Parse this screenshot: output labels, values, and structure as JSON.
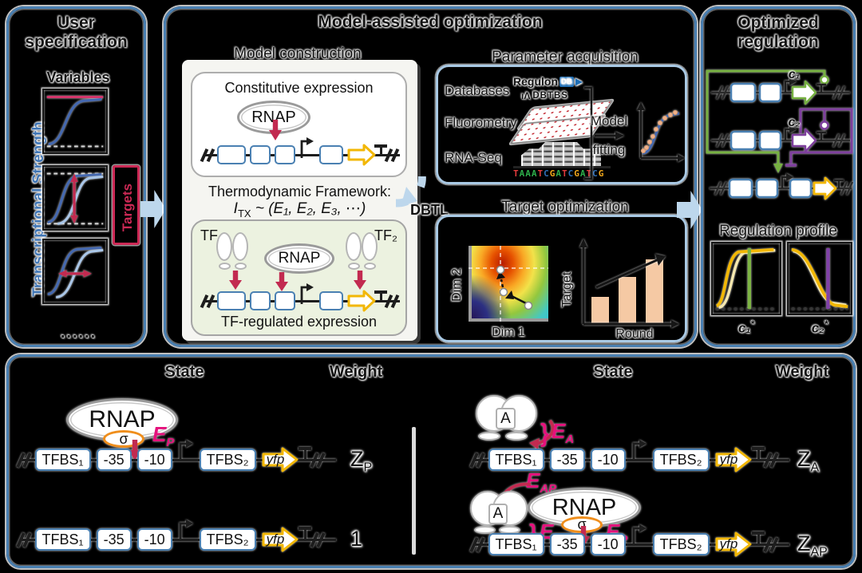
{
  "user_spec": {
    "title_line1": "User",
    "title_line2": "specification",
    "variables_label": "Variables",
    "y_axis_label": "Transcriptional Strength",
    "targets_label": "Targets",
    "ellipsis": "......"
  },
  "middle": {
    "title": "Model-assisted optimization",
    "model_construction": {
      "label": "Model construction",
      "constitutive_title": "Constitutive expression",
      "rnap_label": "RNAP",
      "framework_title": "Thermodynamic Framework:",
      "formula_base": "I",
      "formula_sub": "TX",
      "formula_rest": " ~ (E₁, E₂, E₃, ⋯)",
      "tf1_label": "TF₁",
      "tf2_label": "TF₂",
      "tf_rnap_label": "RNAP",
      "tf_caption": "TF-regulated expression"
    },
    "dbtl_label": "DBTL",
    "parameter_acquisition": {
      "label": "Parameter acquisition",
      "source1": "Databases",
      "source2": "Fluorometry",
      "source3": "RNA-Seq",
      "regulon_label": "Regulon",
      "regulon_db": "DB",
      "regulon_arrow": "▶",
      "dbtbs_glyph": "ıΛ",
      "dbtbs_label": "DBTBS",
      "fitting_line1": "Model",
      "fitting_line2": "fitting",
      "sequence": "TAAATCGATCGATCG"
    },
    "target_optimization": {
      "label": "Target optimization",
      "xlabel": "Dim 1",
      "ylabel": "Dim 2",
      "bar_ylabel": "Target",
      "bar_xlabel": "Round",
      "bar_values": [
        0.38,
        0.66,
        0.9
      ]
    }
  },
  "optimized": {
    "title_line1": "Optimized",
    "title_line2": "regulation",
    "c1_label": "c₁",
    "c2_label": "c₂",
    "profile_label": "Regulation profile",
    "profile1_xlabel_base": "c₁",
    "profile1_xlabel_sup": "*",
    "profile2_xlabel_base": "c₂",
    "profile2_xlabel_sup": "*"
  },
  "states": {
    "left": {
      "state_header": "State",
      "weight_header": "Weight",
      "rnap_label": "RNAP",
      "sigma_label": "σ",
      "ep_base": "E",
      "ep_sub": "P",
      "zp_base": "Z",
      "zp_sub": "P",
      "weight_one": "1"
    },
    "right": {
      "state_header": "State",
      "weight_header": "Weight",
      "activator_label": "A",
      "rnap_label": "RNAP",
      "sigma_label": "σ",
      "brace": "}",
      "ea_base": "E",
      "ea_sub": "A",
      "eap_base": "E",
      "eap_sub": "AP",
      "ep_base": "E",
      "ep_sub": "P",
      "za_base": "Z",
      "za_sub": "A",
      "zap_base": "Z",
      "zap_sub": "AP"
    },
    "dna": {
      "tfbs1": "TFBS₁",
      "minus35": "-35",
      "minus10": "-10",
      "tfbs2": "TFBS₂",
      "gene": "yfp"
    }
  },
  "colors": {
    "panel_border": "#4a80b2",
    "connector_blue": "#bdd7ec",
    "crimson": "#c22a50",
    "pink": "#e5117c",
    "gene_yellow": "#f2b705",
    "circuit_green": "#76b041",
    "circuit_purple": "#7e3f9d",
    "sigma_orange": "#ef8e1c",
    "bar_fill": "#f5c9a4",
    "curve_blue": "#4468b0",
    "curve_light_blue": "#a9c6e8"
  }
}
